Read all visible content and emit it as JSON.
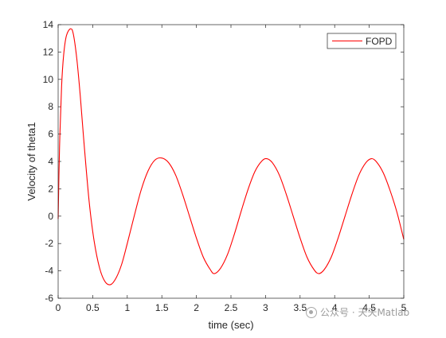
{
  "chart_data": {
    "type": "line",
    "xlabel": "time (sec)",
    "ylabel": "Velocity of theta1",
    "xlim": [
      0,
      5
    ],
    "ylim": [
      -6,
      14
    ],
    "xticks": [
      0,
      0.5,
      1,
      1.5,
      2,
      2.5,
      3,
      3.5,
      4,
      4.5,
      5
    ],
    "xtick_labels": [
      "0",
      "0.5",
      "1",
      "1.5",
      "2",
      "2.5",
      "3",
      "3.5",
      "4",
      "4.5",
      "5"
    ],
    "yticks": [
      -6,
      -4,
      -2,
      0,
      2,
      4,
      6,
      8,
      10,
      12,
      14
    ],
    "ytick_labels": [
      "-6",
      "-4",
      "-2",
      "0",
      "2",
      "4",
      "6",
      "8",
      "10",
      "12",
      "14"
    ],
    "grid": false,
    "legend_position": "top-right",
    "series": [
      {
        "name": "FOPD",
        "color": "#ff0000",
        "points": [
          [
            0,
            -0.2
          ],
          [
            0.02,
            5.0
          ],
          [
            0.05,
            9.5
          ],
          [
            0.08,
            11.8
          ],
          [
            0.12,
            13.2
          ],
          [
            0.18,
            13.7
          ],
          [
            0.22,
            13.3
          ],
          [
            0.27,
            11.5
          ],
          [
            0.32,
            8.8
          ],
          [
            0.38,
            5.0
          ],
          [
            0.45,
            1.0
          ],
          [
            0.52,
            -1.8
          ],
          [
            0.6,
            -3.8
          ],
          [
            0.68,
            -4.8
          ],
          [
            0.76,
            -5.0
          ],
          [
            0.84,
            -4.5
          ],
          [
            0.92,
            -3.5
          ],
          [
            1.0,
            -2.0
          ],
          [
            1.1,
            0.0
          ],
          [
            1.2,
            1.9
          ],
          [
            1.3,
            3.3
          ],
          [
            1.4,
            4.1
          ],
          [
            1.5,
            4.25
          ],
          [
            1.6,
            3.9
          ],
          [
            1.7,
            3.0
          ],
          [
            1.8,
            1.6
          ],
          [
            1.9,
            0.0
          ],
          [
            2.0,
            -1.6
          ],
          [
            2.1,
            -3.0
          ],
          [
            2.2,
            -3.9
          ],
          [
            2.26,
            -4.2
          ],
          [
            2.35,
            -3.8
          ],
          [
            2.45,
            -2.8
          ],
          [
            2.55,
            -1.3
          ],
          [
            2.65,
            0.4
          ],
          [
            2.75,
            2.0
          ],
          [
            2.85,
            3.3
          ],
          [
            2.95,
            4.05
          ],
          [
            3.02,
            4.2
          ],
          [
            3.1,
            3.9
          ],
          [
            3.2,
            3.0
          ],
          [
            3.3,
            1.6
          ],
          [
            3.4,
            0.0
          ],
          [
            3.5,
            -1.6
          ],
          [
            3.6,
            -3.0
          ],
          [
            3.7,
            -3.9
          ],
          [
            3.77,
            -4.2
          ],
          [
            3.85,
            -3.9
          ],
          [
            3.95,
            -3.0
          ],
          [
            4.05,
            -1.6
          ],
          [
            4.15,
            0.0
          ],
          [
            4.25,
            1.6
          ],
          [
            4.35,
            3.0
          ],
          [
            4.45,
            3.9
          ],
          [
            4.53,
            4.2
          ],
          [
            4.6,
            4.0
          ],
          [
            4.7,
            3.2
          ],
          [
            4.8,
            1.9
          ],
          [
            4.9,
            0.3
          ],
          [
            5.0,
            -1.7
          ]
        ]
      }
    ]
  },
  "watermark": {
    "text": "公众号 · 天天Matlab"
  }
}
